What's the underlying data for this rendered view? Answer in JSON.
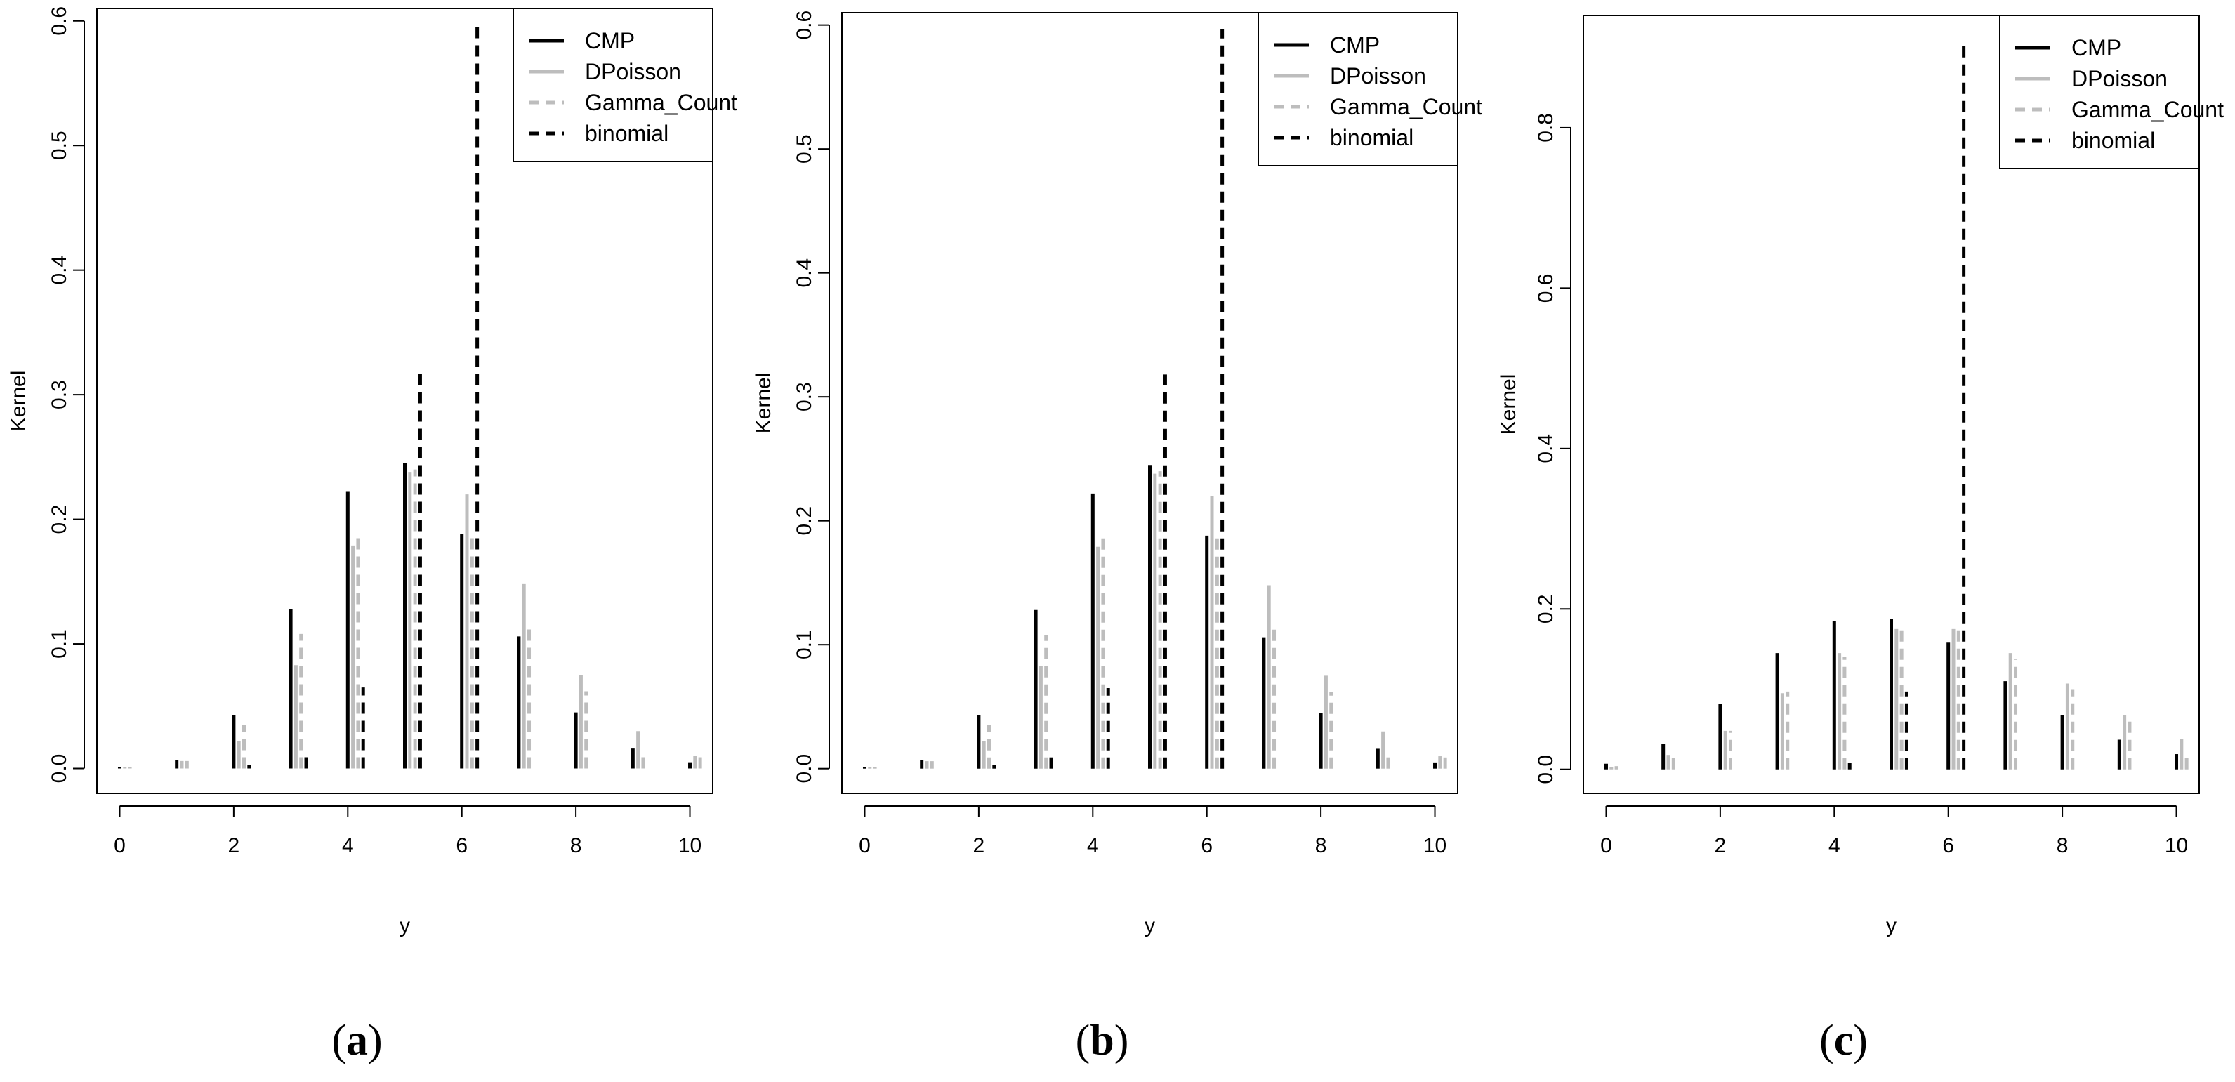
{
  "chart_data": [
    {
      "type": "bar",
      "panel_label": "a",
      "xlabel": "y",
      "ylabel": "Kernel",
      "categories": [
        0,
        1,
        2,
        3,
        4,
        5,
        6,
        7,
        8,
        9,
        10
      ],
      "xlim": [
        -0.4,
        10.4
      ],
      "xticks": [
        0,
        2,
        4,
        6,
        8,
        10
      ],
      "ylim": [
        -0.02,
        0.61
      ],
      "yticks": [
        0.0,
        0.1,
        0.2,
        0.3,
        0.4,
        0.5,
        0.6
      ],
      "ytick_labels": [
        "0.0",
        "0.1",
        "0.2",
        "0.3",
        "0.4",
        "0.5",
        "0.6"
      ],
      "grid": false,
      "legend_position": "top-right",
      "series": [
        {
          "name": "CMP",
          "color": "#000000",
          "dash": "solid",
          "values": [
            0.001,
            0.007,
            0.043,
            0.128,
            0.222,
            0.245,
            0.188,
            0.106,
            0.045,
            0.016,
            0.005
          ]
        },
        {
          "name": "DPoisson",
          "color": "#bdbdbd",
          "dash": "solid",
          "values": [
            0.001,
            0.006,
            0.022,
            0.083,
            0.179,
            0.238,
            0.22,
            0.148,
            0.075,
            0.03,
            0.01
          ]
        },
        {
          "name": "Gamma_Count",
          "color": "#bdbdbd",
          "dash": "dashed",
          "values": [
            0.001,
            0.006,
            0.035,
            0.108,
            0.19,
            0.24,
            0.19,
            0.115,
            0.062,
            0.014,
            0.009
          ]
        },
        {
          "name": "binomial",
          "color": "#000000",
          "dash": "dashed",
          "values": [
            0.0,
            0.0,
            0.003,
            0.011,
            0.065,
            0.318,
            0.597,
            0.0,
            0.0,
            0.0,
            0.0
          ]
        }
      ]
    },
    {
      "type": "bar",
      "panel_label": "b",
      "xlabel": "y",
      "ylabel": "Kernel",
      "categories": [
        0,
        1,
        2,
        3,
        4,
        5,
        6,
        7,
        8,
        9,
        10
      ],
      "xlim": [
        -0.4,
        10.4
      ],
      "xticks": [
        0,
        2,
        4,
        6,
        8,
        10
      ],
      "ylim": [
        -0.02,
        0.61
      ],
      "yticks": [
        0.0,
        0.1,
        0.2,
        0.3,
        0.4,
        0.5,
        0.6
      ],
      "ytick_labels": [
        "0.0",
        "0.1",
        "0.2",
        "0.3",
        "0.4",
        "0.5",
        "0.6"
      ],
      "grid": false,
      "legend_position": "top-right",
      "series": [
        {
          "name": "CMP",
          "color": "#000000",
          "dash": "solid",
          "values": [
            0.001,
            0.007,
            0.043,
            0.128,
            0.222,
            0.245,
            0.188,
            0.106,
            0.045,
            0.016,
            0.005
          ]
        },
        {
          "name": "DPoisson",
          "color": "#bdbdbd",
          "dash": "solid",
          "values": [
            0.001,
            0.006,
            0.022,
            0.083,
            0.179,
            0.238,
            0.22,
            0.148,
            0.075,
            0.03,
            0.01
          ]
        },
        {
          "name": "Gamma_Count",
          "color": "#bdbdbd",
          "dash": "dashed",
          "values": [
            0.001,
            0.006,
            0.035,
            0.108,
            0.19,
            0.24,
            0.19,
            0.115,
            0.062,
            0.014,
            0.009
          ]
        },
        {
          "name": "binomial",
          "color": "#000000",
          "dash": "dashed",
          "values": [
            0.0,
            0.0,
            0.003,
            0.011,
            0.065,
            0.318,
            0.597,
            0.0,
            0.0,
            0.0,
            0.0
          ]
        }
      ]
    },
    {
      "type": "bar",
      "panel_label": "c",
      "xlabel": "y",
      "ylabel": "Kernel",
      "categories": [
        0,
        1,
        2,
        3,
        4,
        5,
        6,
        7,
        8,
        9,
        10
      ],
      "xlim": [
        -0.4,
        10.4
      ],
      "xticks": [
        0,
        2,
        4,
        6,
        8,
        10
      ],
      "ylim": [
        -0.03,
        0.94
      ],
      "yticks": [
        0.0,
        0.2,
        0.4,
        0.6,
        0.8
      ],
      "ytick_labels": [
        "0.0",
        "0.2",
        "0.4",
        "0.6",
        "0.8"
      ],
      "grid": false,
      "legend_position": "top-right",
      "series": [
        {
          "name": "CMP",
          "color": "#000000",
          "dash": "solid",
          "values": [
            0.007,
            0.032,
            0.082,
            0.145,
            0.185,
            0.188,
            0.158,
            0.11,
            0.068,
            0.037,
            0.019
          ]
        },
        {
          "name": "DPoisson",
          "color": "#bdbdbd",
          "dash": "solid",
          "values": [
            0.003,
            0.018,
            0.048,
            0.095,
            0.145,
            0.175,
            0.175,
            0.145,
            0.107,
            0.068,
            0.038
          ]
        },
        {
          "name": "Gamma_Count",
          "color": "#bdbdbd",
          "dash": "dashed",
          "values": [
            0.004,
            0.018,
            0.048,
            0.097,
            0.14,
            0.178,
            0.178,
            0.138,
            0.1,
            0.062,
            0.023
          ]
        },
        {
          "name": "binomial",
          "color": "#000000",
          "dash": "dashed",
          "values": [
            0.0,
            0.0,
            0.0,
            0.0,
            0.008,
            0.097,
            0.907,
            0.0,
            0.0,
            0.0,
            0.0
          ]
        }
      ]
    }
  ]
}
